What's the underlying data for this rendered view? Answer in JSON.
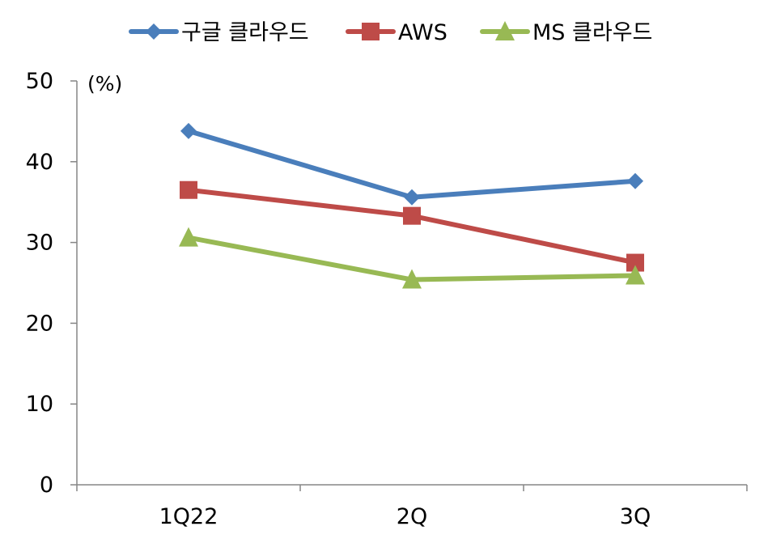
{
  "chart_data": {
    "type": "line",
    "unit_label": "(%)",
    "categories": [
      "1Q22",
      "2Q",
      "3Q"
    ],
    "ylim": [
      0,
      50
    ],
    "yticks": [
      0,
      10,
      20,
      30,
      40,
      50
    ],
    "grid": false,
    "legend": "top-center",
    "series": [
      {
        "name": "구글 클라우드",
        "values": [
          43.8,
          35.6,
          37.6
        ],
        "color": "#4a7ebb",
        "marker": "diamond"
      },
      {
        "name": "AWS",
        "values": [
          36.5,
          33.3,
          27.5
        ],
        "color": "#be4b48",
        "marker": "square"
      },
      {
        "name": "MS 클라우드",
        "values": [
          30.6,
          25.4,
          25.9
        ],
        "color": "#98b954",
        "marker": "triangle"
      }
    ]
  }
}
